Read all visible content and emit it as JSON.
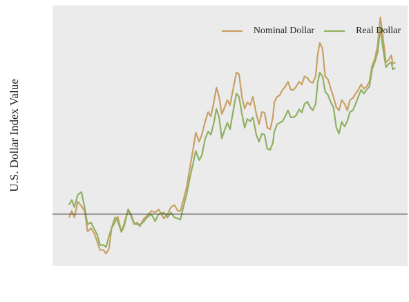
{
  "chart_data": {
    "type": "line",
    "y_label": "U.S. Dollar Index Value",
    "xlim": [
      2009.22,
      2023.82
    ],
    "ylim": [
      90.4,
      138.6
    ],
    "xticks": [
      2011,
      2013,
      2015,
      2017,
      2019,
      2021,
      2023
    ],
    "yticks": [
      100,
      110,
      120,
      130
    ],
    "grid": true,
    "legend": "upper right",
    "reference_line": 100,
    "x": [
      2009.9,
      2010.01,
      2010.12,
      2010.26,
      2010.41,
      2010.55,
      2010.66,
      2010.8,
      2010.94,
      2011.06,
      2011.17,
      2011.31,
      2011.42,
      2011.54,
      2011.65,
      2011.79,
      2011.9,
      2012.05,
      2012.16,
      2012.33,
      2012.44,
      2012.58,
      2012.7,
      2012.81,
      2012.95,
      2013.1,
      2013.29,
      2013.44,
      2013.58,
      2013.8,
      2013.95,
      2014.09,
      2014.23,
      2014.37,
      2014.48,
      2014.6,
      2014.74,
      2014.88,
      2014.99,
      2015.11,
      2015.25,
      2015.36,
      2015.5,
      2015.62,
      2015.73,
      2015.84,
      2015.96,
      2016.07,
      2016.18,
      2016.3,
      2016.41,
      2016.52,
      2016.64,
      2016.78,
      2016.89,
      2017.01,
      2017.12,
      2017.23,
      2017.35,
      2017.46,
      2017.6,
      2017.71,
      2017.83,
      2017.94,
      2018.05,
      2018.17,
      2018.28,
      2018.34,
      2018.45,
      2018.56,
      2018.68,
      2018.79,
      2018.9,
      2019.02,
      2019.13,
      2019.24,
      2019.36,
      2019.47,
      2019.58,
      2019.7,
      2019.81,
      2019.92,
      2020.04,
      2020.12,
      2020.21,
      2020.32,
      2020.43,
      2020.55,
      2020.66,
      2020.77,
      2020.89,
      2021.0,
      2021.11,
      2021.23,
      2021.34,
      2021.45,
      2021.57,
      2021.68,
      2021.79,
      2021.91,
      2022.02,
      2022.13,
      2022.25,
      2022.36,
      2022.47,
      2022.59,
      2022.7,
      2022.81,
      2022.93,
      2023.04,
      2023.15,
      2023.21,
      2023.32
    ],
    "series": [
      {
        "name": "Nominal Dollar",
        "color": "#c9a064",
        "values": [
          99.4,
          100.6,
          99.4,
          102.3,
          101.5,
          100.4,
          96.8,
          97.4,
          96.4,
          94.9,
          93.4,
          93.4,
          92.7,
          93.6,
          97.4,
          98.5,
          99.6,
          96.7,
          97.7,
          100.8,
          99.7,
          98.1,
          98.5,
          97.7,
          99.0,
          99.7,
          100.6,
          100.3,
          100.9,
          99.2,
          100.0,
          101.3,
          101.7,
          100.6,
          100.6,
          102.6,
          105.1,
          108.9,
          111.7,
          115.1,
          113.4,
          114.7,
          117.2,
          118.9,
          118.1,
          120.4,
          123.4,
          121.7,
          118.5,
          119.8,
          121.1,
          120.2,
          123.0,
          126.2,
          125.9,
          121.7,
          119.5,
          120.7,
          120.2,
          121.7,
          118.5,
          116.6,
          118.9,
          118.8,
          116.0,
          115.7,
          117.9,
          120.7,
          121.7,
          122.0,
          123.0,
          123.6,
          124.5,
          123.0,
          123.0,
          123.6,
          124.5,
          124.0,
          125.5,
          125.2,
          124.5,
          124.3,
          125.5,
          129.4,
          131.7,
          130.6,
          125.5,
          124.9,
          123.2,
          121.7,
          119.8,
          119.2,
          121.1,
          120.4,
          119.2,
          121.1,
          121.5,
          122.3,
          123.0,
          124.0,
          123.2,
          123.6,
          124.5,
          127.5,
          128.7,
          131.3,
          136.4,
          132.6,
          128.1,
          128.5,
          129.4,
          127.8,
          128.1
        ]
      },
      {
        "name": "Real Dollar",
        "color": "#8fb060",
        "values": [
          101.7,
          102.6,
          101.3,
          103.6,
          104.1,
          101.0,
          98.1,
          98.5,
          97.2,
          96.2,
          94.3,
          94.3,
          93.9,
          95.9,
          97.4,
          99.4,
          98.7,
          96.8,
          98.1,
          100.9,
          100.0,
          98.3,
          98.1,
          98.1,
          98.5,
          99.4,
          100.0,
          98.7,
          100.0,
          100.3,
          99.4,
          100.3,
          99.4,
          99.2,
          99.0,
          101.3,
          103.8,
          107.0,
          109.2,
          111.7,
          110.0,
          110.9,
          114.0,
          115.3,
          114.7,
          116.6,
          119.5,
          117.9,
          114.0,
          115.6,
          116.9,
          115.7,
          118.9,
          122.3,
          121.7,
          118.5,
          116.0,
          117.6,
          117.2,
          117.9,
          114.7,
          113.4,
          114.9,
          114.7,
          112.1,
          111.9,
          113.2,
          115.3,
          116.6,
          116.9,
          117.2,
          118.1,
          119.2,
          117.9,
          117.9,
          118.3,
          119.4,
          118.8,
          120.4,
          120.8,
          119.8,
          119.2,
          120.4,
          124.3,
          126.2,
          125.5,
          122.7,
          122.0,
          120.7,
          119.8,
          116.0,
          114.9,
          117.1,
          116.2,
          117.2,
          118.9,
          119.2,
          120.4,
          121.7,
          123.0,
          122.3,
          123.0,
          123.6,
          126.8,
          128.1,
          130.0,
          134.5,
          130.6,
          127.2,
          127.8,
          128.1,
          126.8,
          127.1
        ]
      }
    ]
  }
}
